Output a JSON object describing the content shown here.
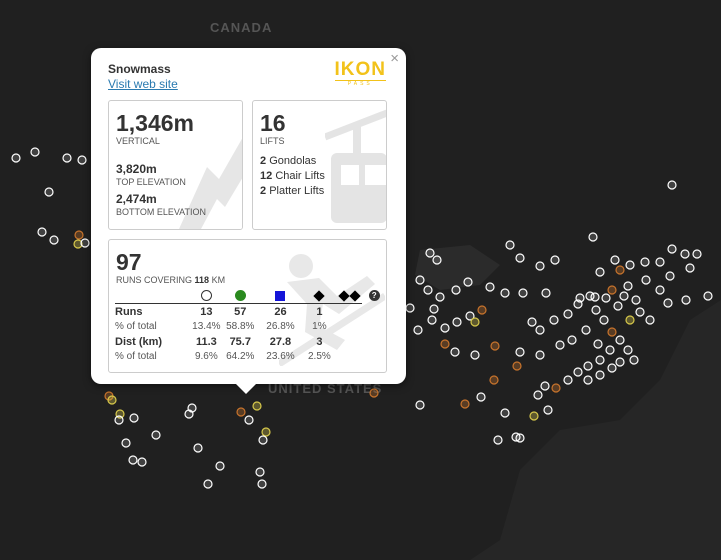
{
  "map": {
    "country_label_canada": "CANADA",
    "country_label_us": "UNITED STATES"
  },
  "popup": {
    "resort_name": "Snowmass",
    "website_link": "Visit web site",
    "pass_logo_text": "IKON",
    "pass_logo_sub": "PASS",
    "close_label": "×",
    "vertical": {
      "value": "1,346m",
      "label": "VERTICAL",
      "top_value": "3,820m",
      "top_label": "TOP ELEVATION",
      "bottom_value": "2,474m",
      "bottom_label": "BOTTOM ELEVATION"
    },
    "lifts": {
      "value": "16",
      "label": "LIFTS",
      "items": [
        {
          "count": "2",
          "name": "Gondolas"
        },
        {
          "count": "12",
          "name": "Chair Lifts"
        },
        {
          "count": "2",
          "name": "Platter Lifts"
        }
      ]
    },
    "runs": {
      "value": "97",
      "caption_prefix": "RUNS COVERING",
      "caption_km": "118",
      "caption_unit": "KM",
      "difficulty_icons": [
        "beginner-circle-icon",
        "easy-green-circle-icon",
        "intermediate-blue-square-icon",
        "advanced-black-diamond-icon",
        "expert-double-diamond-icon",
        "unknown-question-icon"
      ],
      "rows": [
        {
          "label": "Runs",
          "values": [
            "13",
            "57",
            "26",
            "1"
          ]
        },
        {
          "label": "% of total",
          "values": [
            "13.4%",
            "58.8%",
            "26.8%",
            "1%"
          ]
        },
        {
          "label": "Dist (km)",
          "values": [
            "11.3",
            "75.7",
            "27.8",
            "3"
          ]
        },
        {
          "label": "% of total",
          "values": [
            "9.6%",
            "64.2%",
            "23.6%",
            "2.5%"
          ]
        }
      ]
    }
  },
  "colors": {
    "map_background": "#262626",
    "land": "#1f1f1f",
    "marker_white": "#ffffff",
    "marker_orange": "#c8742c",
    "marker_yellow": "#d7c94b",
    "ikon_yellow": "#f2c21a",
    "green": "#2a8a1f",
    "blue": "#1414d8"
  }
}
